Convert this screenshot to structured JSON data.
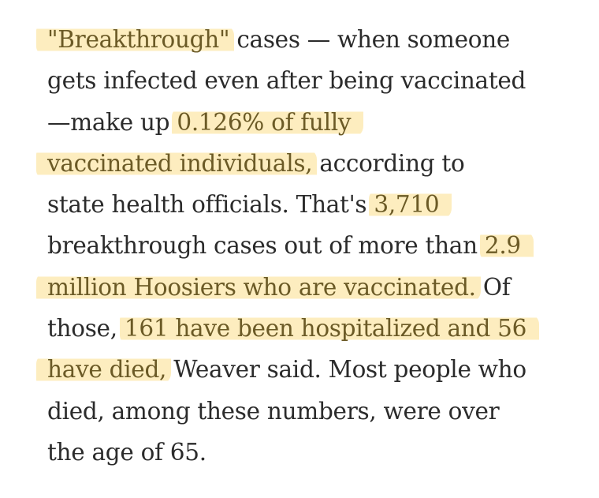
{
  "lines": [
    {
      "hl1": "\"Breakthrough\"",
      "t1": " cases — when someone"
    },
    {
      "t1": "gets infected even after being vaccinated"
    },
    {
      "t1": "—make up ",
      "hl1": "0.126% of fully"
    },
    {
      "hl1": "vaccinated individuals,",
      "t1": " according to"
    },
    {
      "t1": "state health officials. That's ",
      "hl1": "3,710"
    },
    {
      "t1": "breakthrough cases out of more than ",
      "hl1": "2.9"
    },
    {
      "hl1": "million Hoosiers who are vaccinated.",
      "t1": " Of"
    },
    {
      "t1": "those, ",
      "hl1": "161 have been hospitalized and 56"
    },
    {
      "hl1": "have died,",
      "t1": " Weaver said. Most people who"
    },
    {
      "t1": "died, among these numbers, were over"
    },
    {
      "t1": "the age of 65."
    }
  ],
  "highlight_color": "#fdedbf",
  "highlight_text_color": "#6b5a26",
  "text_color": "#2b2b2b"
}
